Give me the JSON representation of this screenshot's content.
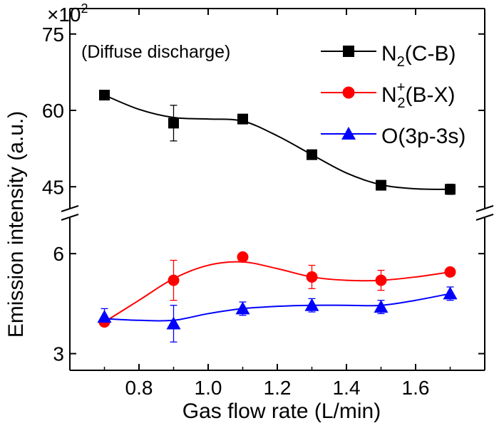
{
  "chart_data": {
    "type": "line",
    "xlabel": "Gas flow rate (L/min)",
    "ylabel": "Emission intensity (a.u.)",
    "multiplier": "×10",
    "multiplier_exp": "2",
    "annotation": "(Diffuse discharge)",
    "x": [
      0.7,
      0.9,
      1.1,
      1.3,
      1.5,
      1.7
    ],
    "xlim": [
      0.6,
      1.8
    ],
    "xticks": [
      "0.8",
      "1.0",
      "1.2",
      "1.4",
      "1.6"
    ],
    "xtick_values": [
      0.8,
      1.0,
      1.2,
      1.4,
      1.6
    ],
    "upper_panel": {
      "ylim": [
        40,
        80
      ],
      "yticks": [
        "45",
        "60",
        "75"
      ],
      "ytick_values": [
        45,
        60,
        75
      ]
    },
    "lower_panel": {
      "ylim": [
        2.5,
        7.2
      ],
      "yticks": [
        "3",
        "6"
      ],
      "ytick_values": [
        3,
        6
      ]
    },
    "legend_placement": "top-right",
    "series": [
      {
        "key": "n2cb",
        "panel": "upper_panel",
        "label_main": "N",
        "label_sub": "2",
        "label_sup": "",
        "label_rest": "(C-B)",
        "color": "#000000",
        "marker": "square",
        "values": [
          63.0,
          57.5,
          58.3,
          51.3,
          45.3,
          44.5
        ],
        "errors": [
          0.3,
          3.5,
          0.6,
          0.5,
          0.5,
          1.0
        ],
        "curve": [
          [
            0.7,
            63.0
          ],
          [
            0.8,
            60.2
          ],
          [
            0.9,
            58.6
          ],
          [
            1.0,
            58.3
          ],
          [
            1.1,
            57.9
          ],
          [
            1.2,
            55.0
          ],
          [
            1.3,
            51.3
          ],
          [
            1.4,
            47.7
          ],
          [
            1.5,
            45.4
          ],
          [
            1.6,
            44.6
          ],
          [
            1.7,
            44.5
          ]
        ]
      },
      {
        "key": "n2plus",
        "panel": "lower_panel",
        "label_main": "N",
        "label_sub": "2",
        "label_sup": "+",
        "label_rest": "(B-X)",
        "color": "#ff0000",
        "marker": "circle",
        "values": [
          3.95,
          5.2,
          5.9,
          5.3,
          5.2,
          5.45
        ],
        "errors": [
          0.1,
          0.6,
          0.1,
          0.35,
          0.3,
          0.1
        ],
        "curve": [
          [
            0.7,
            3.95
          ],
          [
            0.8,
            4.6
          ],
          [
            0.9,
            5.25
          ],
          [
            1.0,
            5.65
          ],
          [
            1.1,
            5.75
          ],
          [
            1.2,
            5.55
          ],
          [
            1.3,
            5.3
          ],
          [
            1.4,
            5.2
          ],
          [
            1.5,
            5.2
          ],
          [
            1.6,
            5.3
          ],
          [
            1.7,
            5.45
          ]
        ]
      },
      {
        "key": "o3p3s",
        "panel": "lower_panel",
        "label_main": "O(3p-3s)",
        "label_sub": "",
        "label_sup": "",
        "label_rest": "",
        "color": "#0000ff",
        "marker": "triangle",
        "values": [
          4.1,
          3.9,
          4.35,
          4.45,
          4.4,
          4.8
        ],
        "errors": [
          0.25,
          0.55,
          0.2,
          0.2,
          0.2,
          0.2
        ],
        "curve": [
          [
            0.7,
            4.05
          ],
          [
            0.8,
            4.0
          ],
          [
            0.9,
            4.0
          ],
          [
            1.0,
            4.2
          ],
          [
            1.1,
            4.35
          ],
          [
            1.2,
            4.42
          ],
          [
            1.3,
            4.45
          ],
          [
            1.4,
            4.45
          ],
          [
            1.5,
            4.45
          ],
          [
            1.6,
            4.6
          ],
          [
            1.7,
            4.8
          ]
        ]
      }
    ]
  }
}
